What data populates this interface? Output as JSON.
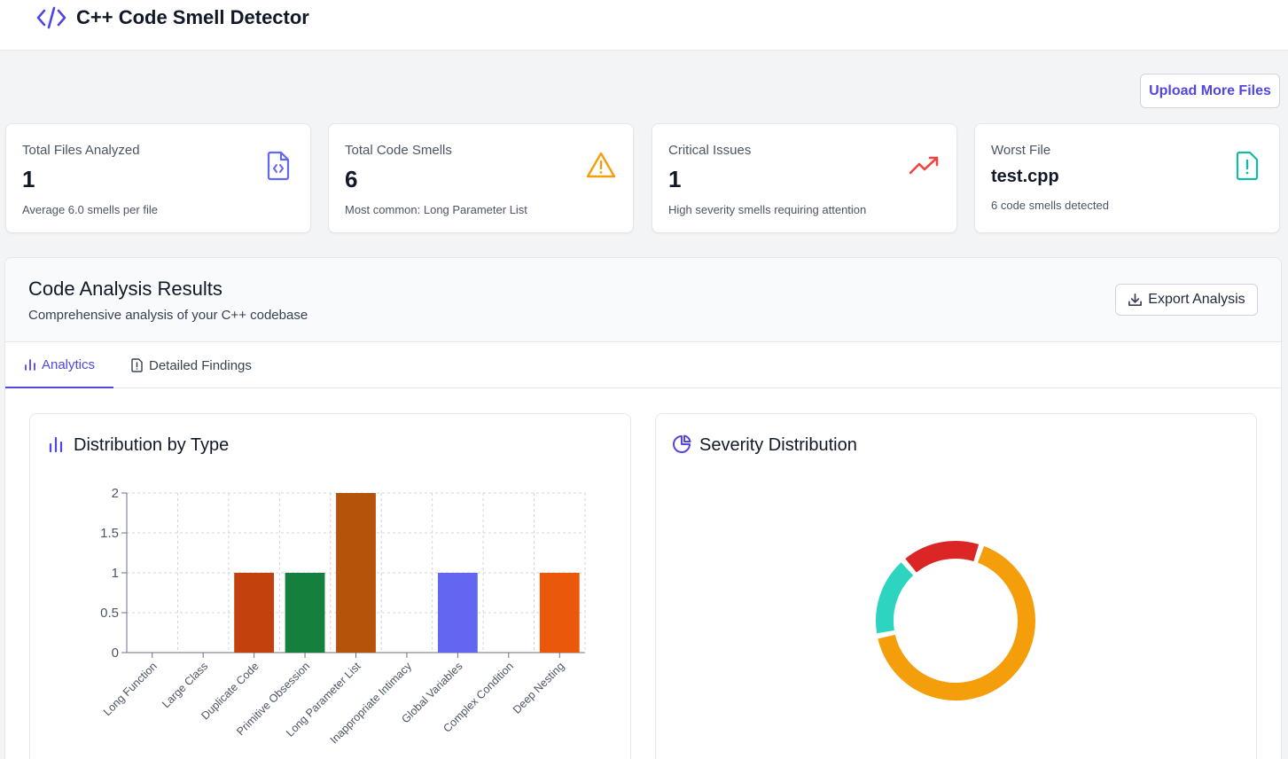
{
  "header": {
    "title": "C++ Code Smell Detector",
    "logo_icon": "code-brackets-icon"
  },
  "actions": {
    "upload_label": "Upload More Files"
  },
  "stats": [
    {
      "label": "Total Files Analyzed",
      "value": "1",
      "sub": "Average 6.0 smells per file",
      "icon": "file-code-icon",
      "color": "#6366f1"
    },
    {
      "label": "Total Code Smells",
      "value": "6",
      "sub": "Most common: Long Parameter List",
      "icon": "warning-triangle-icon",
      "color": "#f59e0b"
    },
    {
      "label": "Critical Issues",
      "value": "1",
      "sub": "High severity smells requiring attention",
      "icon": "trending-up-icon",
      "color": "#ef4444"
    },
    {
      "label": "Worst File",
      "value": "test.cpp",
      "sub": "6 code smells detected",
      "icon": "file-alert-icon",
      "color": "#14b8a6"
    }
  ],
  "results": {
    "title": "Code Analysis Results",
    "subtitle": "Comprehensive analysis of your C++ codebase",
    "export_label": "Export Analysis",
    "tabs": [
      {
        "label": "Analytics",
        "icon": "bar-chart-icon",
        "active": true
      },
      {
        "label": "Detailed Findings",
        "icon": "file-alert-icon",
        "active": false
      }
    ]
  },
  "panels": {
    "distribution_title": "Distribution by Type",
    "severity_title": "Severity Distribution"
  },
  "chart_data": [
    {
      "type": "bar",
      "title": "Distribution by Type",
      "categories": [
        "Long Function",
        "Large Class",
        "Duplicate Code",
        "Primitive Obsession",
        "Long Parameter List",
        "Inappropriate Intimacy",
        "Global Variables",
        "Complex Condition",
        "Deep Nesting"
      ],
      "values": [
        0,
        0,
        1,
        1,
        2,
        0,
        1,
        0,
        1
      ],
      "colors": [
        "#dc2626",
        "#7c3aed",
        "#c2410c",
        "#15803d",
        "#b45309",
        "#0891b2",
        "#6366f1",
        "#059669",
        "#ea580c"
      ],
      "ylim": [
        0,
        2
      ],
      "yticks": [
        "0",
        "0.5",
        "1",
        "1.5",
        "2"
      ],
      "grid": true
    },
    {
      "type": "pie",
      "title": "Severity Distribution",
      "slices": [
        {
          "value": 4,
          "color": "#f59e0b"
        },
        {
          "value": 1,
          "color": "#2dd4bf"
        },
        {
          "value": 1,
          "color": "#dc2626"
        }
      ]
    }
  ]
}
